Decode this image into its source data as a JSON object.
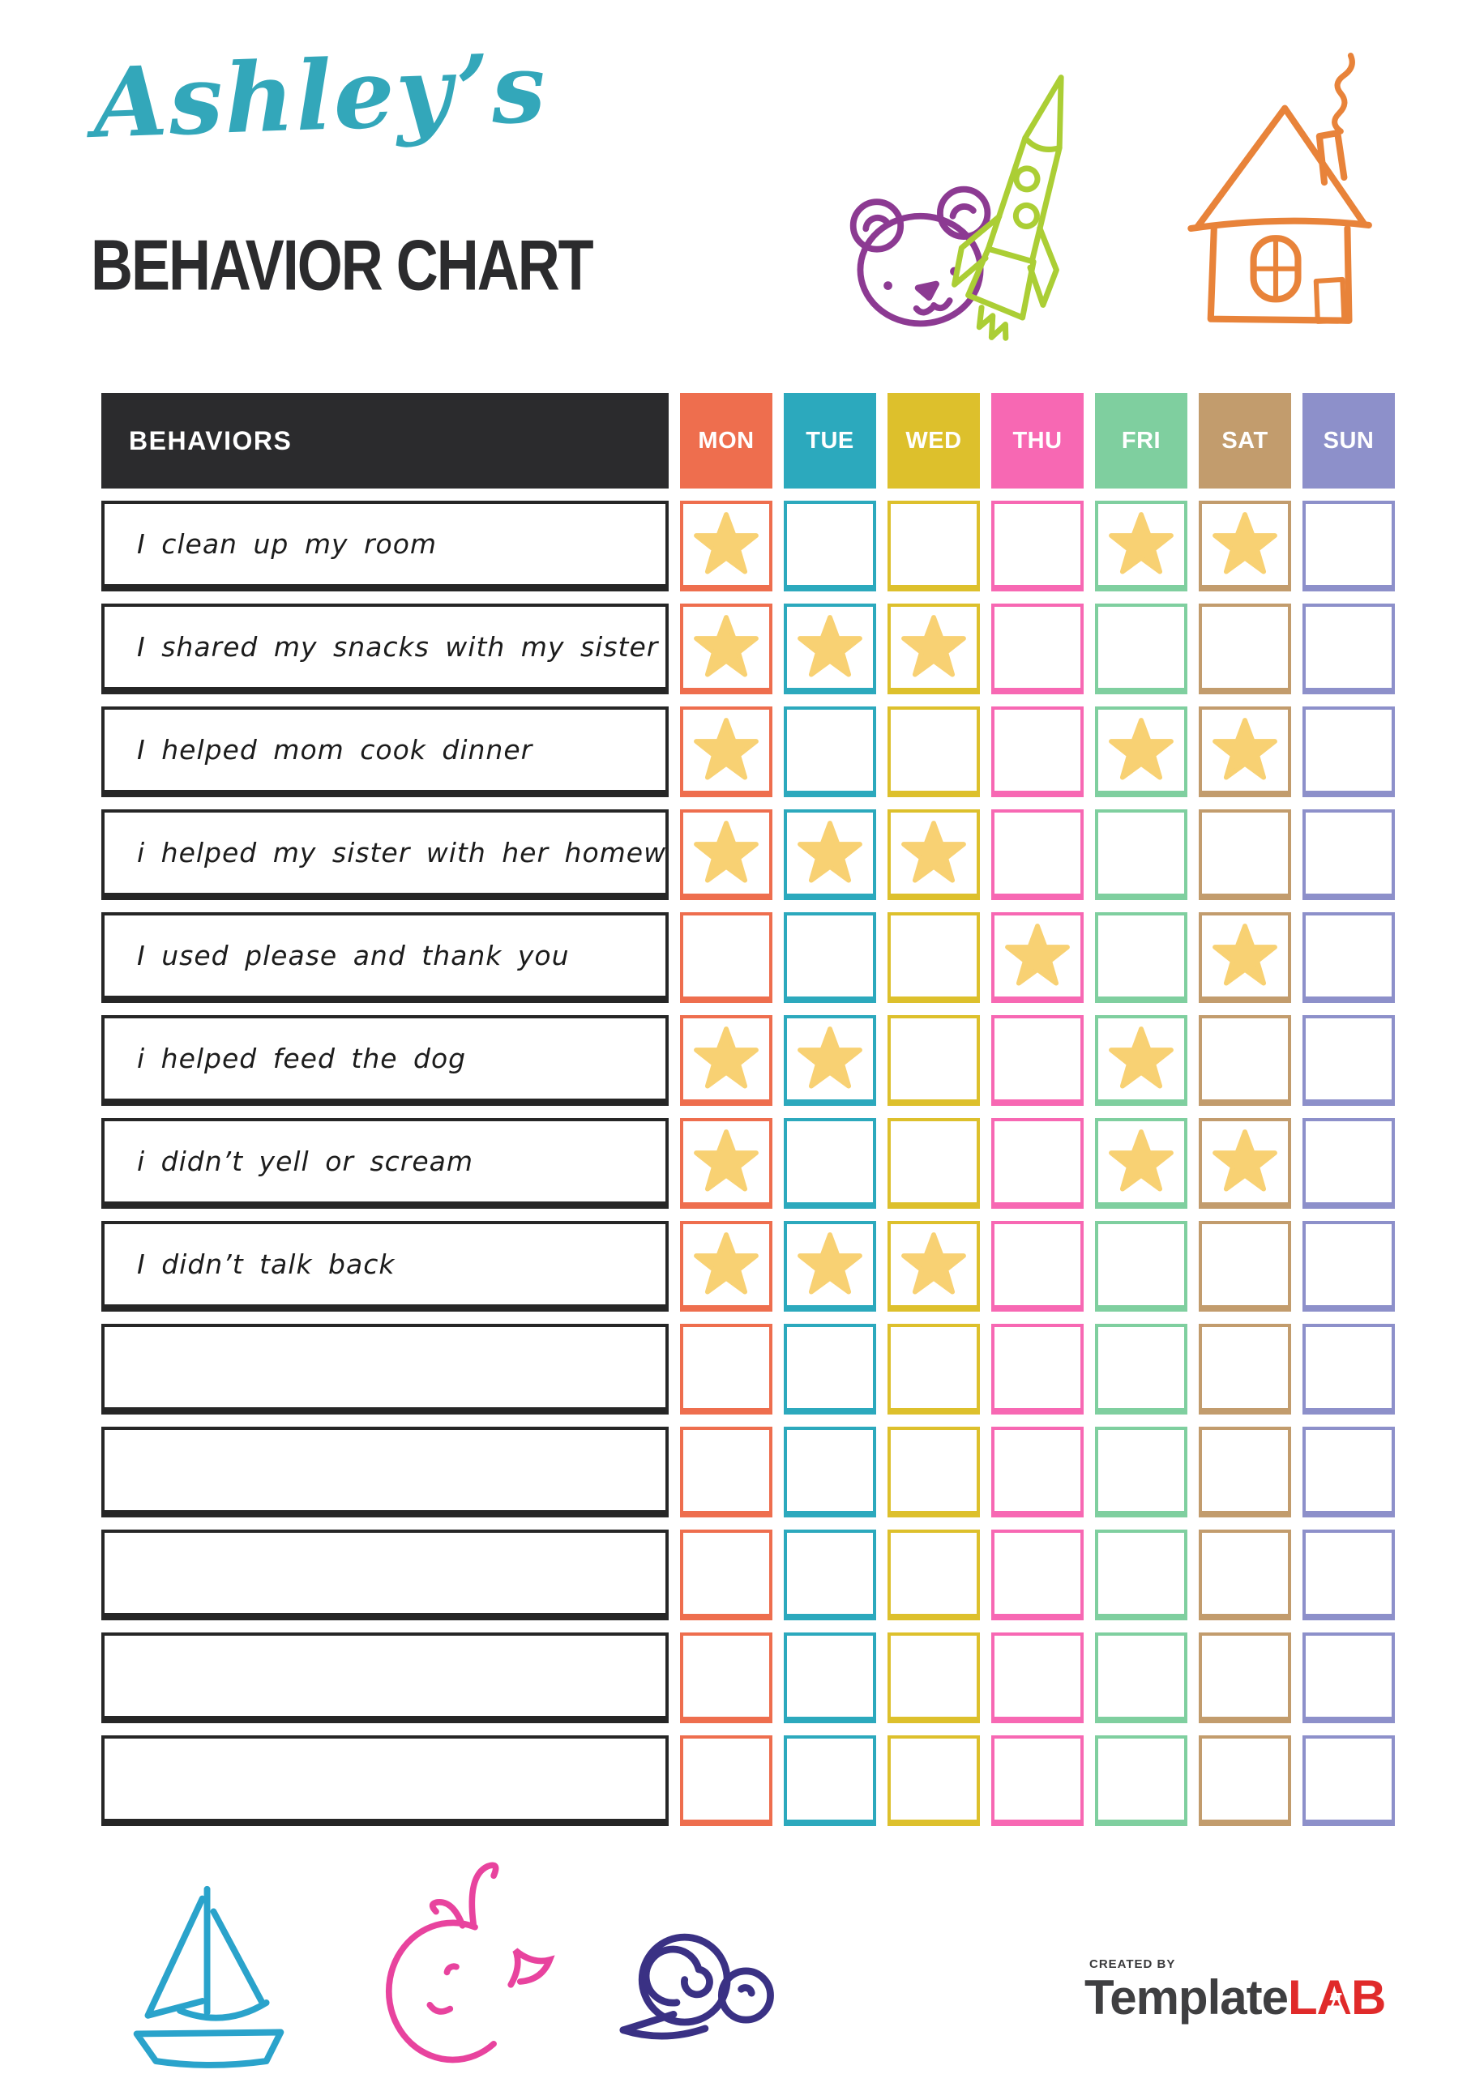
{
  "header": {
    "name_script": "Ashley’s",
    "name_color": "#33a7ba",
    "title": "BEHAVIOR CHART",
    "doodles": [
      {
        "name": "bear",
        "color": "#8c3a92"
      },
      {
        "name": "rocket",
        "color": "#abce35"
      },
      {
        "name": "house",
        "color": "#e8833a"
      }
    ]
  },
  "table": {
    "behaviors_header": "BEHAVIORS",
    "header_bg": "#2b2b2d",
    "star_color": "#f8d173",
    "days": [
      {
        "label": "MON",
        "color": "#ee6e4e"
      },
      {
        "label": "TUE",
        "color": "#2ca9bd"
      },
      {
        "label": "WED",
        "color": "#ddc02c"
      },
      {
        "label": "THU",
        "color": "#f768b3"
      },
      {
        "label": "FRI",
        "color": "#7fcf9f"
      },
      {
        "label": "SAT",
        "color": "#c29c6d"
      },
      {
        "label": "SUN",
        "color": "#8d90ca"
      }
    ],
    "rows": [
      {
        "behavior": "I clean up my room",
        "stars": [
          "MON",
          "FRI",
          "SAT"
        ]
      },
      {
        "behavior": "I shared my snacks with my sister",
        "stars": [
          "MON",
          "TUE",
          "WED"
        ]
      },
      {
        "behavior": "I helped mom cook dinner",
        "stars": [
          "MON",
          "FRI",
          "SAT"
        ]
      },
      {
        "behavior": "i helped my sister with her homework",
        "stars": [
          "MON",
          "TUE",
          "WED"
        ]
      },
      {
        "behavior": "I used please and thank you",
        "stars": [
          "THU",
          "SAT"
        ]
      },
      {
        "behavior": "i helped feed the dog",
        "stars": [
          "MON",
          "TUE",
          "FRI"
        ]
      },
      {
        "behavior": "i didn’t yell or scream",
        "stars": [
          "MON",
          "FRI",
          "SAT"
        ]
      },
      {
        "behavior": "I didn’t talk back",
        "stars": [
          "MON",
          "TUE",
          "WED"
        ]
      },
      {
        "behavior": "",
        "stars": []
      },
      {
        "behavior": "",
        "stars": []
      },
      {
        "behavior": "",
        "stars": []
      },
      {
        "behavior": "",
        "stars": []
      },
      {
        "behavior": "",
        "stars": []
      }
    ]
  },
  "footer": {
    "doodles": [
      {
        "name": "sailboat",
        "color": "#2aa3cb"
      },
      {
        "name": "whale",
        "color": "#e8439e"
      },
      {
        "name": "snail",
        "color": "#3a3184"
      }
    ],
    "logo": {
      "created_by": "CREATED BY",
      "brand_primary": "Template",
      "brand_secondary": "LAB",
      "primary_color": "#3f3f41",
      "secondary_color": "#e02a2a"
    }
  }
}
